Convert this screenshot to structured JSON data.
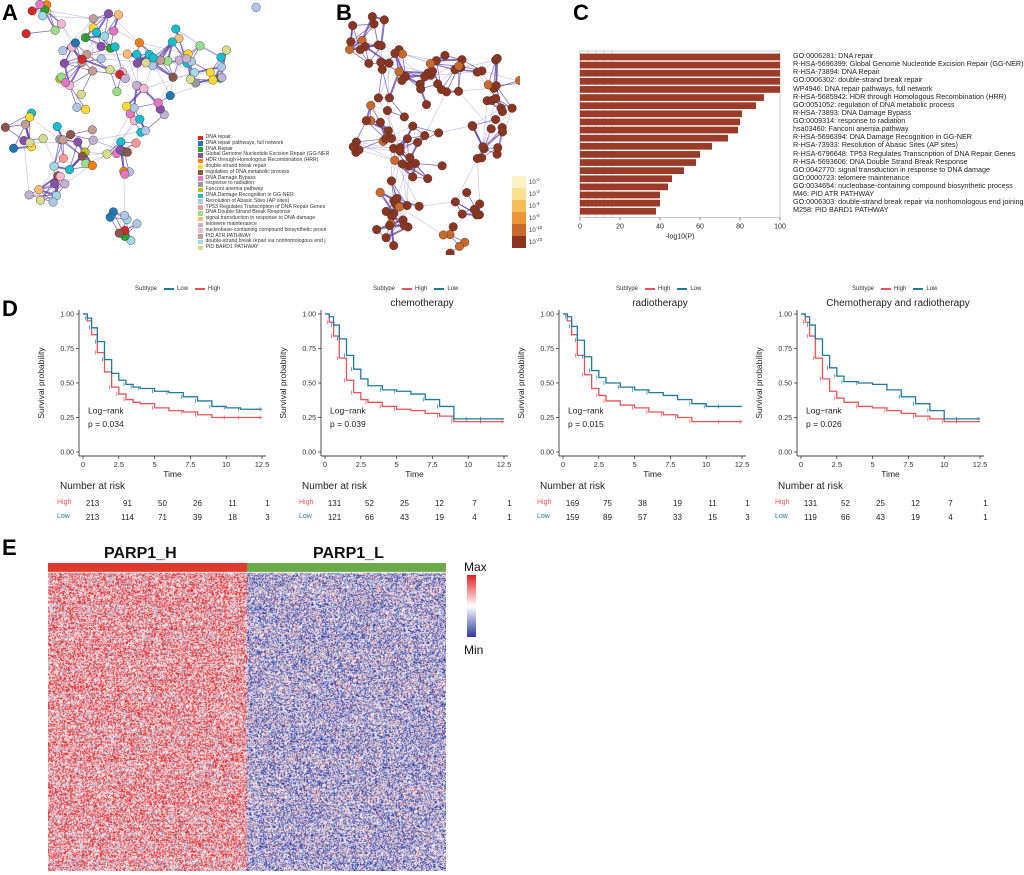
{
  "panels": {
    "a": "A",
    "b": "B",
    "c": "C",
    "d": "D",
    "e": "E"
  },
  "panel_a_legend": [
    {
      "label": "DNA repair",
      "color": "#d62728"
    },
    {
      "label": "DNA repair pathways, full network",
      "color": "#1f77b4"
    },
    {
      "label": "DNA Repair",
      "color": "#2ca02c"
    },
    {
      "label": "Global Genome Nucleotide Excision Repair (GG-NER",
      "color": "#8c4fa8"
    },
    {
      "label": "HDR through Homologous Recombination (HRR)",
      "color": "#ff7f0e"
    },
    {
      "label": "double-strand break repair",
      "color": "#ffd92f"
    },
    {
      "label": "regulation of DNA metabolic process",
      "color": "#8c564b"
    },
    {
      "label": "DNA Damage Bypass",
      "color": "#e377c2"
    },
    {
      "label": "response to radiation",
      "color": "#999999"
    },
    {
      "label": "Fanconi anemia pathway",
      "color": "#bcbd22"
    },
    {
      "label": "DNA Damage Recognition in GG-NER",
      "color": "#17becf"
    },
    {
      "label": "Resolution of Abasic Sites (AP sites)",
      "color": "#aec7e8"
    },
    {
      "label": "TP53 Regulates Transcription of DNA Repair Genes",
      "color": "#ff9896"
    },
    {
      "label": "DNA Double Strand Break Response",
      "color": "#98df8a"
    },
    {
      "label": "signal transduction in response to DNA damage",
      "color": "#ffbb78"
    },
    {
      "label": "telomere maintenance",
      "color": "#c5b0d5"
    },
    {
      "label": "nucleobase-containing compound biosynthetic proce",
      "color": "#f7b6d2"
    },
    {
      "label": "PID ATR PATHWAY",
      "color": "#c49c94"
    },
    {
      "label": "double-strand break repair via nonhomologous end j",
      "color": "#9edae5"
    },
    {
      "label": "PID BARD1 PATHWAY",
      "color": "#dbdb8d"
    }
  ],
  "panel_b_legend": [
    {
      "label": "10-2",
      "base": "10",
      "exp": "-2",
      "color": "#fdf2c4"
    },
    {
      "label": "10-3",
      "base": "10",
      "exp": "-3",
      "color": "#fbe090"
    },
    {
      "label": "10-4",
      "base": "10",
      "exp": "-4",
      "color": "#f7be55"
    },
    {
      "label": "10-6",
      "base": "10",
      "exp": "-6",
      "color": "#ee9436"
    },
    {
      "label": "10-10",
      "base": "10",
      "exp": "-10",
      "color": "#c96a2b"
    },
    {
      "label": "10-20",
      "base": "10",
      "exp": "-20",
      "color": "#8b3520"
    }
  ],
  "chart_data": [
    {
      "id": "C",
      "type": "bar",
      "orientation": "horizontal",
      "xlabel": "-log10(P)",
      "xlim": [
        0,
        100
      ],
      "xticks": [
        "0",
        "20",
        "40",
        "60",
        "80",
        "100"
      ],
      "categories": [
        "GO:0006281: DNA repair",
        "R-HSA-5696399: Global Genome Nucleotide Excision Repair (GG-NER)",
        "R-HSA-73894: DNA Repair",
        "GO:0006302: double-strand break repair",
        "WP4946: DNA repair pathways, full network",
        "R-HSA-5685942: HDR through Homologous Recombination (HRR)",
        "GO:0051052: regulation of DNA metabolic process",
        "R-HSA-73893: DNA Damage Bypass",
        "GO:0009314: response to radiation",
        "hsa03460: Fanconi anemia pathway",
        "R-HSA-5696394: DNA Damage Recognition in GG-NER",
        "R-HSA-73933: Resolution of Abasic Sites (AP sites)",
        "R-HSA-6796648: TP53 Regulates Transcription of DNA Repair Genes",
        "R-HSA-5693606: DNA Double Strand Break Response",
        "GO:0042770: signal transduction in response to DNA damage",
        "GO:0000723: telomere maintenance",
        "GO:0034654: nucleobase-containing compound biosynthetic process",
        "M46: PID ATR PATHWAY",
        "GO:0006303: double-strand break repair via nonhomologous end joining",
        "M258: PID BARD1 PATHWAY"
      ],
      "values": [
        100,
        100,
        100,
        100,
        100,
        92,
        88,
        81,
        80,
        79,
        74,
        66,
        60,
        58,
        52,
        46,
        44,
        40,
        40,
        38
      ],
      "color": "#9b3a26"
    },
    {
      "id": "D1",
      "type": "line",
      "title": "",
      "xlabel": "Time",
      "ylabel": "Survival probability",
      "legend_title": "Subtype",
      "legend_order": [
        "Low",
        "High"
      ],
      "xlim": [
        0,
        12.5
      ],
      "ylim": [
        0,
        1
      ],
      "xticks": [
        "0",
        "2.5",
        "5",
        "7.5",
        "10",
        "12.5"
      ],
      "yticks": [
        "0.00",
        "0.25",
        "0.50",
        "0.75",
        "1.00"
      ],
      "annotation": [
        "Log−rank",
        "p = 0.034"
      ],
      "series": [
        {
          "name": "High",
          "color": "#e8545a",
          "x": [
            0,
            0.3,
            0.6,
            1,
            1.5,
            2,
            2.5,
            3,
            3.5,
            4,
            5,
            6,
            7,
            8,
            9,
            10,
            11,
            12.5
          ],
          "y": [
            1,
            0.95,
            0.85,
            0.72,
            0.58,
            0.47,
            0.42,
            0.38,
            0.36,
            0.35,
            0.32,
            0.3,
            0.29,
            0.27,
            0.25,
            0.25,
            0.25,
            0.25
          ]
        },
        {
          "name": "Low",
          "color": "#1f7b9e",
          "x": [
            0,
            0.3,
            0.6,
            1,
            1.5,
            2,
            2.5,
            3,
            3.5,
            4,
            5,
            6,
            7,
            8,
            9,
            10,
            11,
            12.5
          ],
          "y": [
            1,
            0.97,
            0.9,
            0.8,
            0.67,
            0.57,
            0.52,
            0.49,
            0.47,
            0.46,
            0.44,
            0.43,
            0.4,
            0.37,
            0.33,
            0.32,
            0.31,
            0.31
          ]
        }
      ],
      "risk_table": {
        "title": "Number at risk",
        "rows": [
          {
            "label": "High",
            "color": "#e8545a",
            "values": [
              "213",
              "91",
              "50",
              "26",
              "11",
              "1"
            ]
          },
          {
            "label": "Low",
            "color": "#1f7b9e",
            "values": [
              "213",
              "114",
              "71",
              "39",
              "18",
              "3"
            ]
          }
        ]
      }
    },
    {
      "id": "D2",
      "type": "line",
      "title": "chemotherapy",
      "xlabel": "Time",
      "ylabel": "Survival probability",
      "legend_title": "Subtype",
      "legend_order": [
        "High",
        "Low"
      ],
      "xlim": [
        0,
        12.5
      ],
      "ylim": [
        0,
        1
      ],
      "xticks": [
        "0",
        "2.5",
        "5",
        "7.5",
        "10",
        "12.5"
      ],
      "yticks": [
        "0.00",
        "0.25",
        "0.50",
        "0.75",
        "1.00"
      ],
      "annotation": [
        "Log−rank",
        "p = 0.039"
      ],
      "series": [
        {
          "name": "High",
          "color": "#e8545a",
          "x": [
            0,
            0.3,
            0.6,
            1,
            1.5,
            2,
            2.5,
            3,
            4,
            5,
            6,
            7,
            8,
            9,
            10,
            11,
            12.5
          ],
          "y": [
            1,
            0.94,
            0.84,
            0.68,
            0.52,
            0.43,
            0.38,
            0.36,
            0.33,
            0.31,
            0.3,
            0.28,
            0.26,
            0.22,
            0.22,
            0.22,
            0.22
          ]
        },
        {
          "name": "Low",
          "color": "#1f7b9e",
          "x": [
            0,
            0.3,
            0.6,
            1,
            1.5,
            2,
            2.5,
            3,
            4,
            5,
            6,
            7,
            8,
            9,
            10,
            11,
            12.5
          ],
          "y": [
            1,
            0.98,
            0.92,
            0.82,
            0.7,
            0.6,
            0.53,
            0.48,
            0.45,
            0.44,
            0.42,
            0.38,
            0.33,
            0.24,
            0.24,
            0.24,
            0.24
          ]
        }
      ],
      "risk_table": {
        "title": "Number at risk",
        "rows": [
          {
            "label": "High",
            "color": "#e8545a",
            "values": [
              "131",
              "52",
              "25",
              "12",
              "7",
              "1"
            ]
          },
          {
            "label": "Low",
            "color": "#1f7b9e",
            "values": [
              "121",
              "66",
              "43",
              "19",
              "4",
              "1"
            ]
          }
        ]
      }
    },
    {
      "id": "D3",
      "type": "line",
      "title": "radiotherapy",
      "xlabel": "Time",
      "ylabel": "Survival probability",
      "legend_title": "Subtype",
      "legend_order": [
        "High",
        "Low"
      ],
      "xlim": [
        0,
        12.5
      ],
      "ylim": [
        0,
        1
      ],
      "xticks": [
        "0",
        "2.5",
        "5",
        "7.5",
        "10",
        "12.5"
      ],
      "yticks": [
        "0.00",
        "0.25",
        "0.50",
        "0.75",
        "1.00"
      ],
      "annotation": [
        "Log−rank",
        "p = 0.015"
      ],
      "series": [
        {
          "name": "High",
          "color": "#e8545a",
          "x": [
            0,
            0.3,
            0.6,
            1,
            1.5,
            2,
            2.5,
            3,
            4,
            5,
            6,
            7,
            8,
            9,
            10,
            11,
            12.5
          ],
          "y": [
            1,
            0.95,
            0.85,
            0.7,
            0.56,
            0.46,
            0.41,
            0.37,
            0.34,
            0.32,
            0.29,
            0.27,
            0.25,
            0.22,
            0.22,
            0.22,
            0.22
          ]
        },
        {
          "name": "Low",
          "color": "#1f7b9e",
          "x": [
            0,
            0.3,
            0.6,
            1,
            1.5,
            2,
            2.5,
            3,
            4,
            5,
            6,
            7,
            8,
            9,
            10,
            11,
            12.5
          ],
          "y": [
            1,
            0.98,
            0.91,
            0.81,
            0.69,
            0.59,
            0.54,
            0.5,
            0.47,
            0.45,
            0.43,
            0.41,
            0.38,
            0.35,
            0.33,
            0.33,
            0.33
          ]
        }
      ],
      "risk_table": {
        "title": "Number at risk",
        "rows": [
          {
            "label": "High",
            "color": "#e8545a",
            "values": [
              "169",
              "75",
              "38",
              "19",
              "11",
              "1"
            ]
          },
          {
            "label": "Low",
            "color": "#1f7b9e",
            "values": [
              "159",
              "89",
              "57",
              "33",
              "15",
              "3"
            ]
          }
        ]
      }
    },
    {
      "id": "D4",
      "type": "line",
      "title": "Chemotherapy  and radiotherapy",
      "xlabel": "Time",
      "ylabel": "Survival probability",
      "legend_title": "Subtype",
      "legend_order": [
        "High",
        "Low"
      ],
      "xlim": [
        0,
        12.5
      ],
      "ylim": [
        0,
        1
      ],
      "xticks": [
        "0",
        "2.5",
        "5",
        "7.5",
        "10",
        "12.5"
      ],
      "yticks": [
        "0.00",
        "0.25",
        "0.50",
        "0.75",
        "1.00"
      ],
      "annotation": [
        "Log−rank",
        "p = 0.026"
      ],
      "series": [
        {
          "name": "High",
          "color": "#e8545a",
          "x": [
            0,
            0.3,
            0.6,
            1,
            1.5,
            2,
            2.5,
            3,
            4,
            5,
            6,
            7,
            8,
            9,
            10,
            11,
            12.5
          ],
          "y": [
            1,
            0.94,
            0.84,
            0.68,
            0.53,
            0.44,
            0.39,
            0.36,
            0.33,
            0.32,
            0.3,
            0.28,
            0.26,
            0.24,
            0.22,
            0.22,
            0.22
          ]
        },
        {
          "name": "Low",
          "color": "#1f7b9e",
          "x": [
            0,
            0.3,
            0.6,
            1,
            1.5,
            2,
            2.5,
            3,
            4,
            5,
            6,
            7,
            8,
            9,
            10,
            11,
            12.5
          ],
          "y": [
            1,
            0.98,
            0.92,
            0.82,
            0.7,
            0.61,
            0.55,
            0.51,
            0.5,
            0.49,
            0.45,
            0.4,
            0.35,
            0.3,
            0.24,
            0.24,
            0.24
          ]
        }
      ],
      "risk_table": {
        "title": "Number at risk",
        "rows": [
          {
            "label": "High",
            "color": "#e8545a",
            "values": [
              "131",
              "52",
              "25",
              "12",
              "7",
              "1"
            ]
          },
          {
            "label": "Low",
            "color": "#1f7b9e",
            "values": [
              "119",
              "66",
              "43",
              "19",
              "4",
              "1"
            ]
          }
        ]
      }
    },
    {
      "id": "E",
      "type": "heatmap",
      "groups": [
        {
          "name": "PARP1_H",
          "color": "#e03a2f"
        },
        {
          "name": "PARP1_L",
          "color": "#6aaa4a"
        }
      ],
      "scale": {
        "max": "Max",
        "min": "Min",
        "high_color": "#e02020",
        "mid_color": "#ffffff",
        "low_color": "#2a3aa0"
      }
    }
  ]
}
